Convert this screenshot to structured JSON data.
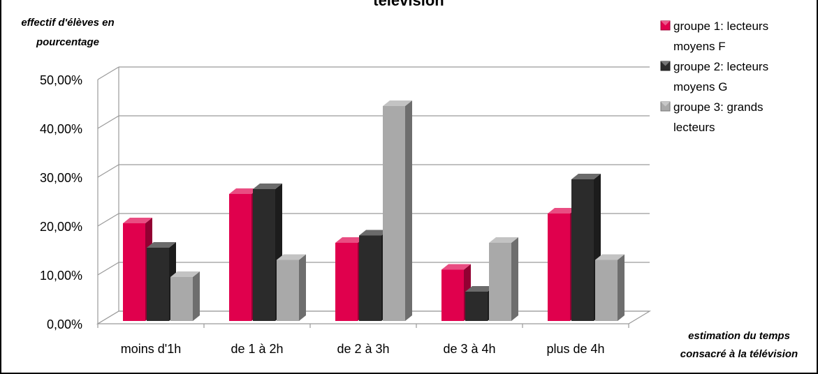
{
  "chart_data": {
    "type": "bar",
    "title": "télévision",
    "ylabel_lines": [
      "effectif d'élèves en",
      "pourcentage"
    ],
    "xlabel_lines": [
      "estimation du temps",
      "consacré à la télévision"
    ],
    "categories": [
      "moins d'1h",
      "de 1 à 2h",
      "de 2 à 3h",
      "de 3 à 4h",
      "plus de 4h"
    ],
    "y_ticks": [
      "0,00%",
      "10,00%",
      "20,00%",
      "30,00%",
      "40,00%",
      "50,00%"
    ],
    "ylim": [
      0,
      50
    ],
    "grid": true,
    "legend_position": "right",
    "series": [
      {
        "name_lines": [
          "groupe 1: lecteurs",
          "moyens F"
        ],
        "color": "#e0004d",
        "values": [
          20.0,
          26.0,
          16.0,
          10.5,
          22.0
        ]
      },
      {
        "name_lines": [
          "groupe 2: lecteurs",
          "moyens G"
        ],
        "color": "#2b2b2b",
        "values": [
          15.0,
          27.0,
          17.5,
          6.0,
          29.0
        ]
      },
      {
        "name_lines": [
          "groupe 3: grands",
          "lecteurs"
        ],
        "color": "#a9a9a9",
        "values": [
          9.0,
          12.5,
          44.0,
          16.0,
          12.5
        ]
      }
    ]
  }
}
